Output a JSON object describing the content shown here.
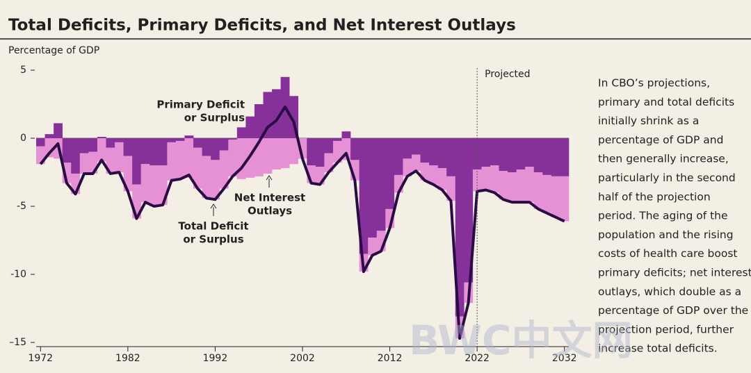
{
  "chart_data": {
    "type": "stacked-bar-line",
    "title": "Total Deficits, Primary Deficits, and Net Interest Outlays",
    "y_label": "Percentage of GDP",
    "x": [
      1972,
      1973,
      1974,
      1975,
      1976,
      1977,
      1978,
      1979,
      1980,
      1981,
      1982,
      1983,
      1984,
      1985,
      1986,
      1987,
      1988,
      1989,
      1990,
      1991,
      1992,
      1993,
      1994,
      1995,
      1996,
      1997,
      1998,
      1999,
      2000,
      2001,
      2002,
      2003,
      2004,
      2005,
      2006,
      2007,
      2008,
      2009,
      2010,
      2011,
      2012,
      2013,
      2014,
      2015,
      2016,
      2017,
      2018,
      2019,
      2020,
      2021,
      2022,
      2023,
      2024,
      2025,
      2026,
      2027,
      2028,
      2029,
      2030,
      2031,
      2032
    ],
    "series": [
      {
        "name": "Primary Deficit or Surplus",
        "color": "#86309a",
        "kind": "bar",
        "values": [
          -0.6,
          0.3,
          1.1,
          -1.8,
          -2.6,
          -1.1,
          -1.0,
          0.1,
          -0.7,
          -0.3,
          -1.3,
          -3.4,
          -1.9,
          -2.0,
          -2.0,
          -0.3,
          -0.2,
          0.2,
          -0.7,
          -1.3,
          -1.6,
          -0.9,
          -0.1,
          0.8,
          1.6,
          2.5,
          3.4,
          3.6,
          4.5,
          3.1,
          0,
          -2.0,
          -2.1,
          -1.1,
          -0.2,
          0.5,
          -1.6,
          -8.5,
          -7.3,
          -6.8,
          -5.2,
          -2.7,
          -1.5,
          -1.2,
          -1.8,
          -2.0,
          -2.2,
          -2.8,
          -13.1,
          -10.6,
          -2.3,
          -2.1,
          -2.0,
          -2.4,
          -2.5,
          -2.3,
          -2.1,
          -2.5,
          -2.7,
          -2.8,
          -2.8
        ]
      },
      {
        "name": "Net Interest Outlays",
        "color": "#e690d6",
        "kind": "bar",
        "values": [
          -1.3,
          -1.4,
          -1.5,
          -1.5,
          -1.5,
          -1.5,
          -1.6,
          -1.7,
          -1.9,
          -2.2,
          -2.6,
          -2.5,
          -2.8,
          -3.0,
          -2.9,
          -2.8,
          -2.8,
          -2.9,
          -3.0,
          -3.1,
          -2.9,
          -2.8,
          -2.7,
          -3.0,
          -2.9,
          -2.8,
          -2.6,
          -2.3,
          -2.2,
          -1.9,
          -1.5,
          -1.3,
          -1.3,
          -1.4,
          -1.6,
          -1.6,
          -1.5,
          -1.3,
          -1.3,
          -1.5,
          -1.4,
          -1.3,
          -1.3,
          -1.2,
          -1.3,
          -1.4,
          -1.6,
          -1.8,
          -1.6,
          -1.5,
          -1.6,
          -1.7,
          -2.0,
          -2.1,
          -2.2,
          -2.4,
          -2.6,
          -2.7,
          -2.8,
          -3.0,
          -3.3
        ]
      },
      {
        "name": "Total Deficit or Surplus",
        "color": "#2a0c45",
        "kind": "line",
        "values": [
          -1.9,
          -1.1,
          -0.4,
          -3.3,
          -4.1,
          -2.6,
          -2.6,
          -1.6,
          -2.6,
          -2.5,
          -3.9,
          -5.9,
          -4.7,
          -5.0,
          -4.9,
          -3.1,
          -3.0,
          -2.7,
          -3.7,
          -4.4,
          -4.5,
          -3.7,
          -2.8,
          -2.2,
          -1.3,
          -0.3,
          0.8,
          1.3,
          2.3,
          1.2,
          -1.5,
          -3.3,
          -3.4,
          -2.5,
          -1.8,
          -1.1,
          -3.1,
          -9.8,
          -8.6,
          -8.3,
          -6.6,
          -4.0,
          -2.8,
          -2.4,
          -3.1,
          -3.4,
          -3.8,
          -4.6,
          -14.7,
          -12.1,
          -3.9,
          -3.8,
          -4.0,
          -4.5,
          -4.7,
          -4.7,
          -4.7,
          -5.2,
          -5.5,
          -5.8,
          -6.1
        ]
      }
    ],
    "xlim": [
      1971.5,
      2032.5
    ],
    "xticks": [
      1972,
      1982,
      1992,
      2002,
      2012,
      2022,
      2032
    ],
    "ylim": [
      -15,
      5
    ],
    "yticks": [
      5,
      0,
      -5,
      -10,
      {
        "value": -15,
        "label": "–15"
      }
    ],
    "annotations": {
      "projected": {
        "text": "Projected",
        "x": 2022
      },
      "primary": [
        "Primary Deficit",
        "or Surplus"
      ],
      "interest": [
        "Net Interest",
        "Outlays"
      ],
      "total": [
        "Total Deficit",
        "or Surplus"
      ]
    },
    "side_note": [
      "In CBO’s projections,",
      "primary and total deficits",
      "initially shrink as a",
      "percentage of GDP and",
      "then generally increase,",
      "particularly in the second",
      "half of the projection",
      "period. The aging of the",
      "population and the rising",
      "costs of health care boost",
      "primary deficits; net interest",
      "outlays, which double as a",
      "percentage of GDP over the",
      "projection period, further",
      "increase total deficits."
    ],
    "watermark": "BWC中文网"
  }
}
